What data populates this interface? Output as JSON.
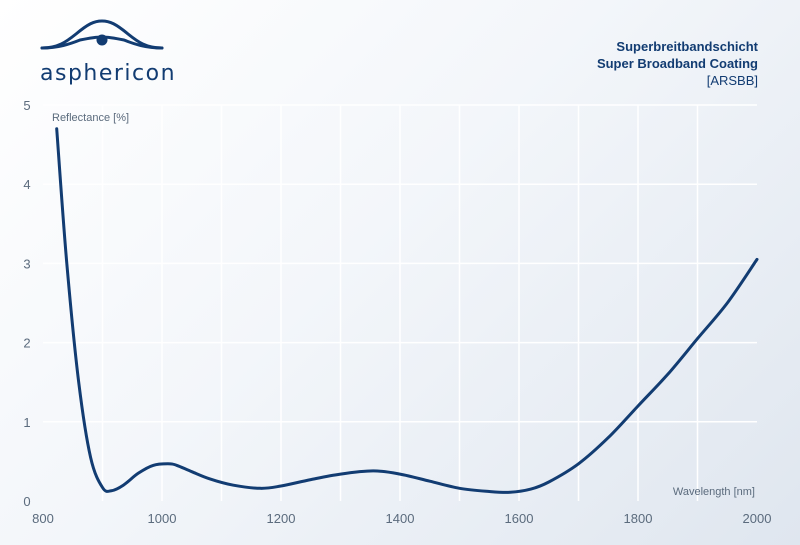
{
  "brand": {
    "name": "asphericon",
    "line_color": "#123c72"
  },
  "header": {
    "title_de": "Superbreitbandschicht",
    "title_en": "Super Broadband Coating",
    "code": "[ARSBB]"
  },
  "chart_data": {
    "type": "line",
    "title": "Super Broadband Coating",
    "xlabel": "Wavelength [nm]",
    "ylabel": "Reflectance [%]",
    "xlim": [
      800,
      2000
    ],
    "ylim": [
      0,
      5
    ],
    "x_ticks": [
      800,
      1000,
      1200,
      1400,
      1600,
      1800,
      2000
    ],
    "y_ticks": [
      0,
      1,
      2,
      3,
      4,
      5
    ],
    "grid": true,
    "series": [
      {
        "color": "#123c72",
        "x": [
          823,
          840,
          860,
          880,
          900,
          915,
          935,
          960,
          985,
          1010,
          1025,
          1050,
          1080,
          1120,
          1165,
          1200,
          1250,
          1300,
          1355,
          1400,
          1450,
          1500,
          1550,
          1585,
          1620,
          1650,
          1700,
          1750,
          1800,
          1850,
          1900,
          1950,
          2000
        ],
        "y": [
          4.7,
          3.0,
          1.5,
          0.55,
          0.17,
          0.13,
          0.2,
          0.35,
          0.45,
          0.47,
          0.45,
          0.37,
          0.28,
          0.2,
          0.16,
          0.19,
          0.27,
          0.34,
          0.38,
          0.34,
          0.25,
          0.16,
          0.12,
          0.11,
          0.15,
          0.24,
          0.47,
          0.8,
          1.2,
          1.6,
          2.05,
          2.5,
          3.05
        ]
      }
    ]
  }
}
